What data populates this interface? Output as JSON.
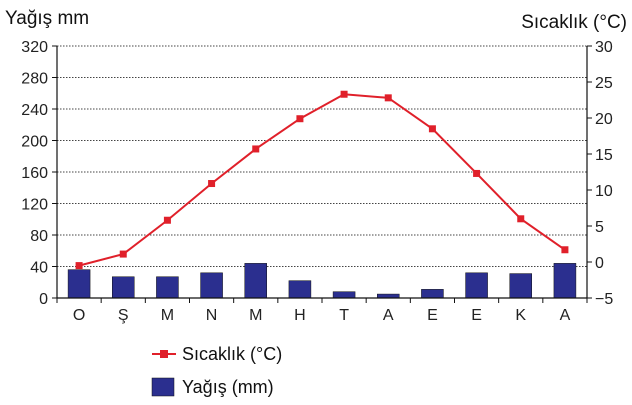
{
  "chart_data": {
    "type": "bar+line",
    "categories": [
      "O",
      "Ş",
      "M",
      "N",
      "M",
      "H",
      "T",
      "A",
      "E",
      "E",
      "K",
      "A"
    ],
    "left_axis": {
      "title": "Yağış mm",
      "range": [
        0,
        320
      ],
      "ticks": [
        0,
        40,
        80,
        120,
        160,
        200,
        240,
        280,
        320
      ]
    },
    "right_axis": {
      "title": "Sıcaklık (°C)",
      "range": [
        -5,
        30
      ],
      "ticks": [
        -5,
        0,
        5,
        10,
        15,
        20,
        25,
        30
      ]
    },
    "series": [
      {
        "name": "Yağış (mm)",
        "type": "bar",
        "axis": "left",
        "color": "#2b2f8f",
        "values": [
          36,
          27,
          27,
          32,
          44,
          22,
          8,
          5,
          11,
          32,
          31,
          44
        ]
      },
      {
        "name": "Sıcaklık (°C)",
        "type": "line",
        "axis": "right",
        "color": "#e0202a",
        "values": [
          -0.5,
          1.1,
          5.8,
          10.9,
          15.7,
          19.9,
          23.3,
          22.8,
          18.5,
          12.3,
          6.0,
          1.7
        ]
      }
    ],
    "grid": "horizontal dotted",
    "legend": [
      {
        "label": "Sıcaklık (°C)",
        "marker": "line-square",
        "color": "#e0202a"
      },
      {
        "label": "Yağış (mm)",
        "marker": "box",
        "color": "#2b2f8f"
      }
    ],
    "legend_position": "bottom"
  }
}
